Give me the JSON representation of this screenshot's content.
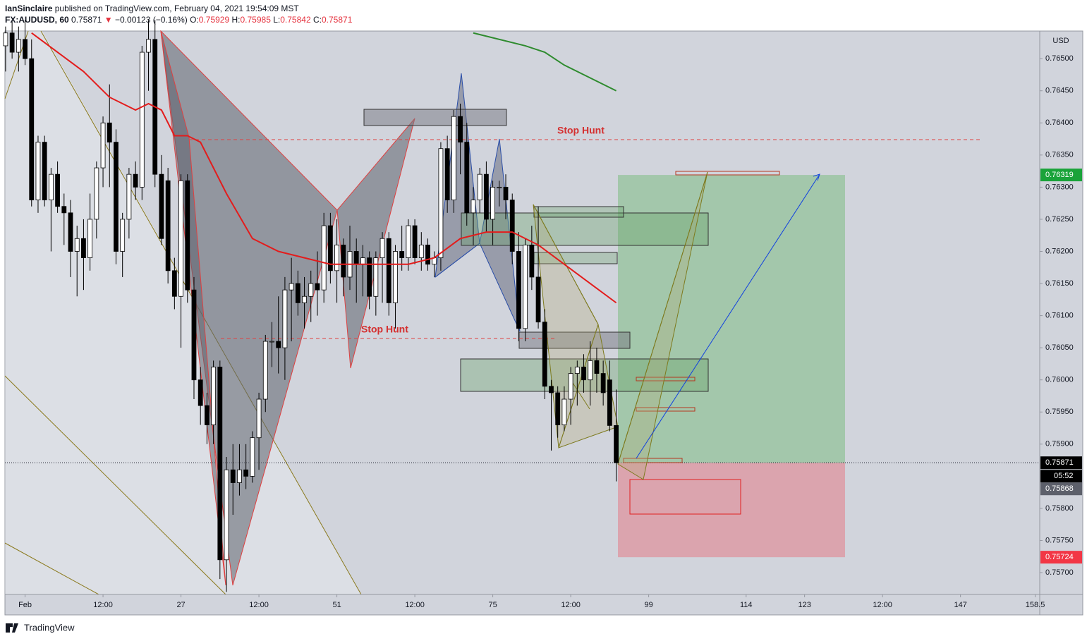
{
  "header": {
    "author": "IanSinclaire",
    "published": "published on TradingView.com, February 04, 2021 19:54:09 MST",
    "symbol": "FX:AUDUSD, 60",
    "last": "0.75871",
    "arrow": "▼",
    "change": "−0.00123 (−0.16%)",
    "ohlc": [
      {
        "label": "O:",
        "value": "0.75929"
      },
      {
        "label": "H:",
        "value": "0.75985"
      },
      {
        "label": "L:",
        "value": "0.75842"
      },
      {
        "label": "C:",
        "value": "0.75871"
      }
    ]
  },
  "chart_data": {
    "type": "candlestick",
    "currency": "USD",
    "up_color": "#ffffff",
    "down_color": "#000000",
    "xlim": [
      -0.1,
      159.2
    ],
    "ylim": [
      0.75666,
      0.76543
    ],
    "grid": false,
    "xticks": [
      {
        "value": 3,
        "label": "Feb"
      },
      {
        "value": 15,
        "label": "12:00"
      },
      27,
      {
        "value": 39,
        "label": "12:00"
      },
      51,
      {
        "value": 63,
        "label": "12:00"
      },
      75,
      {
        "value": 87,
        "label": "12:00"
      },
      99,
      114,
      123,
      {
        "value": 135,
        "label": "12:00"
      },
      147,
      158.5
    ],
    "yticks": [
      {
        "value": 0.757,
        "label": "0.75700"
      },
      {
        "value": 0.7575,
        "label": "0.75750"
      },
      {
        "value": 0.758,
        "label": "0.75800"
      },
      {
        "value": 0.759,
        "label": "0.75900"
      },
      {
        "value": 0.7595,
        "label": "0.75950"
      },
      {
        "value": 0.76,
        "label": "0.76000"
      },
      {
        "value": 0.7605,
        "label": "0.76050"
      },
      {
        "value": 0.761,
        "label": "0.76100"
      },
      {
        "value": 0.7615,
        "label": "0.76150"
      },
      {
        "value": 0.762,
        "label": "0.76200"
      },
      {
        "value": 0.7625,
        "label": "0.76250"
      },
      {
        "value": 0.763,
        "label": "0.76300"
      },
      {
        "value": 0.7635,
        "label": "0.76350"
      },
      {
        "value": 0.764,
        "label": "0.76400"
      },
      {
        "value": 0.7645,
        "label": "0.76450"
      },
      {
        "value": 0.765,
        "label": "0.76500"
      }
    ],
    "candles": [
      [
        0.7652,
        0.7655,
        0.7648,
        0.7654
      ],
      [
        0.7654,
        0.7656,
        0.765,
        0.7651
      ],
      [
        0.7651,
        0.7655,
        0.7648,
        0.7653
      ],
      [
        0.7653,
        0.7656,
        0.7649,
        0.765
      ],
      [
        0.765,
        0.7653,
        0.7627,
        0.7628
      ],
      [
        0.7628,
        0.7638,
        0.7626,
        0.7637
      ],
      [
        0.7637,
        0.7638,
        0.7627,
        0.7628
      ],
      [
        0.7628,
        0.7633,
        0.762,
        0.7632
      ],
      [
        0.7632,
        0.7634,
        0.7626,
        0.7627
      ],
      [
        0.7627,
        0.7629,
        0.7621,
        0.7626
      ],
      [
        0.7626,
        0.7628,
        0.7616,
        0.762
      ],
      [
        0.762,
        0.7624,
        0.7613,
        0.7622
      ],
      [
        0.7622,
        0.7625,
        0.7614,
        0.7619
      ],
      [
        0.7619,
        0.7629,
        0.7617,
        0.7625
      ],
      [
        0.7625,
        0.7634,
        0.7622,
        0.7633
      ],
      [
        0.7633,
        0.7641,
        0.763,
        0.764
      ],
      [
        0.764,
        0.7646,
        0.763,
        0.7637
      ],
      [
        0.7637,
        0.7639,
        0.7618,
        0.762
      ],
      [
        0.762,
        0.7626,
        0.7616,
        0.7625
      ],
      [
        0.7625,
        0.7633,
        0.7622,
        0.7632
      ],
      [
        0.7632,
        0.7634,
        0.7628,
        0.763
      ],
      [
        0.763,
        0.7652,
        0.7628,
        0.7651
      ],
      [
        0.7651,
        0.7656,
        0.7645,
        0.7653
      ],
      [
        0.7653,
        0.7656,
        0.763,
        0.7632
      ],
      [
        0.7632,
        0.7635,
        0.7621,
        0.7622
      ],
      [
        0.7631,
        0.7633,
        0.7615,
        0.7617
      ],
      [
        0.7617,
        0.7619,
        0.7611,
        0.7613
      ],
      [
        0.7613,
        0.7632,
        0.7605,
        0.7631
      ],
      [
        0.7631,
        0.7632,
        0.7612,
        0.7614
      ],
      [
        0.7614,
        0.7616,
        0.7597,
        0.76
      ],
      [
        0.76,
        0.7602,
        0.7593,
        0.7596
      ],
      [
        0.7596,
        0.7598,
        0.759,
        0.7593
      ],
      [
        0.7593,
        0.7603,
        0.759,
        0.7602
      ],
      [
        0.7602,
        0.7603,
        0.7569,
        0.7572
      ],
      [
        0.7572,
        0.7588,
        0.7567,
        0.7586
      ],
      [
        0.7586,
        0.759,
        0.7579,
        0.7584
      ],
      [
        0.7584,
        0.759,
        0.7582,
        0.7586
      ],
      [
        0.7586,
        0.759,
        0.7583,
        0.7585
      ],
      [
        0.7585,
        0.7592,
        0.7584,
        0.7591
      ],
      [
        0.7591,
        0.7598,
        0.7586,
        0.7597
      ],
      [
        0.7597,
        0.7607,
        0.7595,
        0.7606
      ],
      [
        0.7606,
        0.7609,
        0.7602,
        0.7606
      ],
      [
        0.7606,
        0.7613,
        0.7601,
        0.7605
      ],
      [
        0.7605,
        0.7616,
        0.76,
        0.7614
      ],
      [
        0.7614,
        0.7619,
        0.7606,
        0.7615
      ],
      [
        0.7615,
        0.7617,
        0.761,
        0.7612
      ],
      [
        0.7612,
        0.7616,
        0.7608,
        0.7613
      ],
      [
        0.7613,
        0.7617,
        0.7609,
        0.7615
      ],
      [
        0.7615,
        0.762,
        0.761,
        0.7614
      ],
      [
        0.7614,
        0.7626,
        0.7612,
        0.7624
      ],
      [
        0.7624,
        0.7626,
        0.7615,
        0.7617
      ],
      [
        0.7617,
        0.7625,
        0.7612,
        0.7621
      ],
      [
        0.7621,
        0.7622,
        0.7613,
        0.7616
      ],
      [
        0.7616,
        0.7624,
        0.7614,
        0.762
      ],
      [
        0.762,
        0.7622,
        0.7612,
        0.7618
      ],
      [
        0.7618,
        0.7621,
        0.7613,
        0.7619
      ],
      [
        0.7619,
        0.762,
        0.7611,
        0.7613
      ],
      [
        0.7613,
        0.762,
        0.761,
        0.7619
      ],
      [
        0.7619,
        0.7623,
        0.7612,
        0.7622
      ],
      [
        0.7622,
        0.7623,
        0.761,
        0.7612
      ],
      [
        0.7612,
        0.7621,
        0.7608,
        0.762
      ],
      [
        0.762,
        0.7624,
        0.7617,
        0.7619
      ],
      [
        0.7619,
        0.7625,
        0.7617,
        0.7624
      ],
      [
        0.7624,
        0.7625,
        0.7618,
        0.7619
      ],
      [
        0.7619,
        0.7623,
        0.7617,
        0.7621
      ],
      [
        0.7621,
        0.7622,
        0.7617,
        0.7618
      ],
      [
        0.7618,
        0.762,
        0.7616,
        0.7619
      ],
      [
        0.7619,
        0.7637,
        0.7617,
        0.7636
      ],
      [
        0.7636,
        0.7638,
        0.7626,
        0.7628
      ],
      [
        0.7628,
        0.7642,
        0.7626,
        0.7641
      ],
      [
        0.7641,
        0.7643,
        0.7632,
        0.7637
      ],
      [
        0.7637,
        0.764,
        0.7624,
        0.7626
      ],
      [
        0.7626,
        0.763,
        0.7621,
        0.7628
      ],
      [
        0.7628,
        0.7633,
        0.7626,
        0.7632
      ],
      [
        0.7632,
        0.7634,
        0.7623,
        0.7625
      ],
      [
        0.7625,
        0.7631,
        0.7621,
        0.763
      ],
      [
        0.763,
        0.7631,
        0.7627,
        0.763
      ],
      [
        0.763,
        0.7632,
        0.7625,
        0.7628
      ],
      [
        0.7628,
        0.7629,
        0.7618,
        0.762
      ],
      [
        0.762,
        0.7623,
        0.7606,
        0.7608
      ],
      [
        0.7608,
        0.7622,
        0.7606,
        0.7621
      ],
      [
        0.7621,
        0.7624,
        0.7614,
        0.7616
      ],
      [
        0.7616,
        0.7627,
        0.7608,
        0.7609
      ],
      [
        0.7609,
        0.7611,
        0.7597,
        0.7599
      ],
      [
        0.7599,
        0.76,
        0.7589,
        0.7598
      ],
      [
        0.7598,
        0.7599,
        0.7591,
        0.7593
      ],
      [
        0.7593,
        0.7599,
        0.7592,
        0.7597
      ],
      [
        0.7597,
        0.7602,
        0.7593,
        0.7601
      ],
      [
        0.7601,
        0.7603,
        0.7596,
        0.7602
      ],
      [
        0.7602,
        0.7604,
        0.7598,
        0.76
      ],
      [
        0.76,
        0.7606,
        0.7596,
        0.7603
      ],
      [
        0.7603,
        0.7605,
        0.7598,
        0.7601
      ],
      [
        0.7601,
        0.7603,
        0.7596,
        0.7598
      ],
      [
        0.76,
        0.7603,
        0.7592,
        0.75929
      ],
      [
        0.75929,
        0.75985,
        0.75842,
        0.75871
      ]
    ],
    "series": [
      {
        "color": "#e31c1c",
        "x": [
          4,
          8,
          12,
          16,
          20,
          22,
          24,
          26,
          28,
          30,
          34,
          38,
          42,
          46,
          50,
          54,
          58,
          62,
          66,
          70,
          74,
          78,
          82,
          86,
          90,
          94
        ],
        "values": [
          0.7654,
          0.7651,
          0.7648,
          0.7644,
          0.7642,
          0.7643,
          0.7642,
          0.7638,
          0.7638,
          0.7637,
          0.7629,
          0.7622,
          0.762,
          0.7619,
          0.7618,
          0.7618,
          0.7618,
          0.7618,
          0.7619,
          0.7622,
          0.7623,
          0.7623,
          0.7621,
          0.7618,
          0.7615,
          0.7612
        ]
      },
      {
        "color": "#2e8b2e",
        "x": [
          72,
          80,
          83,
          86,
          90,
          94
        ],
        "values": [
          0.7654,
          0.7652,
          0.7651,
          0.7649,
          0.7647,
          0.7645
        ]
      }
    ],
    "price_labels": [
      {
        "value": 0.76319,
        "label": "0.76319",
        "color": "#1aa33a"
      },
      {
        "value": 0.75871,
        "label": "0.75871",
        "color": "#000000"
      },
      {
        "value": 0.75724,
        "label": "0.75724",
        "color": "#f23645"
      }
    ],
    "countdown": "05:52",
    "bid_label": {
      "value": 0.75868,
      "label": "0.75868",
      "color": "#5d606b"
    },
    "annotations": [
      "Stop Hunt",
      "Stop Hunt"
    ]
  },
  "footer": "TradingView"
}
